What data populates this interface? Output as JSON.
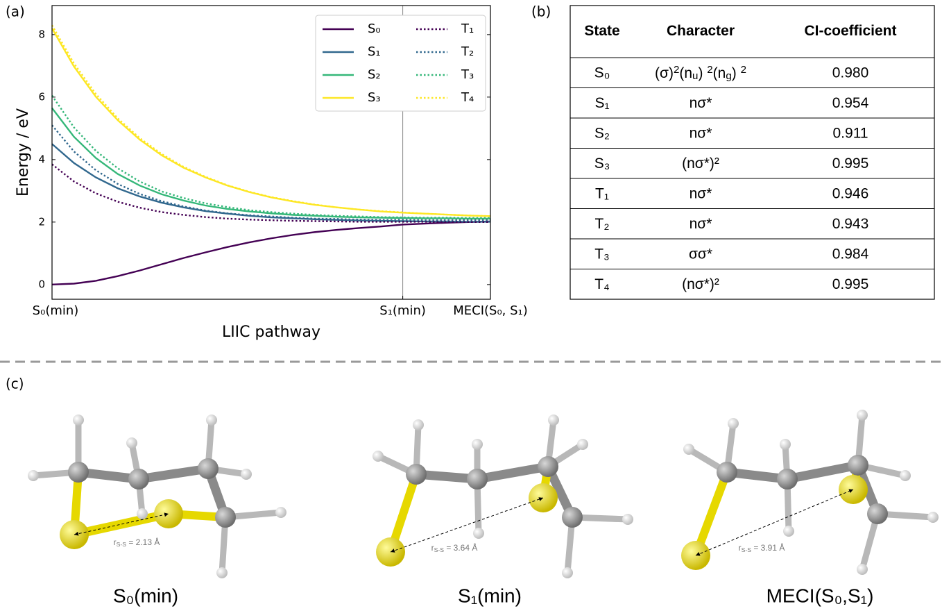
{
  "panels": {
    "a": "(a)",
    "b": "(b)",
    "c": "(c)"
  },
  "chart_data": {
    "type": "line",
    "xlabel": "LIIC pathway",
    "ylabel": "Energy / eV",
    "x": [
      0,
      1,
      2,
      3,
      4,
      5,
      6,
      7,
      8,
      9,
      10,
      11,
      12,
      13,
      14,
      15,
      16,
      17,
      18,
      19,
      20
    ],
    "xlim": [
      0,
      20
    ],
    "xticks": [
      {
        "value": 0,
        "label": "S₀(min)"
      },
      {
        "value": 16,
        "label": "S₁(min)"
      },
      {
        "value": 20,
        "label": "MECI(S₀, S₁)"
      }
    ],
    "vline": 16,
    "ylim": [
      -0.47,
      8.93
    ],
    "yticks": [
      0,
      2,
      4,
      6,
      8
    ],
    "legend": "upper right",
    "legend_columns": 2,
    "series": [
      {
        "name": "S₀",
        "color": "#440154",
        "style": "solid",
        "values": [
          0,
          0.03,
          0.12,
          0.27,
          0.45,
          0.65,
          0.85,
          1.03,
          1.2,
          1.35,
          1.48,
          1.59,
          1.68,
          1.75,
          1.81,
          1.86,
          1.92,
          1.95,
          1.98,
          2.0,
          2.02
        ]
      },
      {
        "name": "S₁",
        "color": "#31688e",
        "style": "solid",
        "values": [
          4.5,
          3.89,
          3.43,
          3.08,
          2.82,
          2.62,
          2.47,
          2.35,
          2.27,
          2.2,
          2.15,
          2.12,
          2.09,
          2.07,
          2.05,
          2.04,
          2.03,
          2.02,
          2.02,
          2.01,
          2.01
        ]
      },
      {
        "name": "S₂",
        "color": "#35b779",
        "style": "solid",
        "values": [
          5.65,
          4.73,
          4.05,
          3.54,
          3.17,
          2.89,
          2.69,
          2.53,
          2.42,
          2.34,
          2.28,
          2.23,
          2.2,
          2.17,
          2.15,
          2.14,
          2.13,
          2.12,
          2.12,
          2.11,
          2.11
        ]
      },
      {
        "name": "S₃",
        "color": "#fde725",
        "style": "solid",
        "values": [
          8.2,
          6.98,
          6.01,
          5.26,
          4.64,
          4.14,
          3.74,
          3.43,
          3.17,
          2.96,
          2.79,
          2.66,
          2.55,
          2.47,
          2.4,
          2.34,
          2.3,
          2.27,
          2.24,
          2.21,
          2.19
        ]
      },
      {
        "name": "T₁",
        "color": "#440154",
        "style": "dotted",
        "values": [
          3.85,
          3.3,
          2.92,
          2.65,
          2.46,
          2.32,
          2.23,
          2.16,
          2.11,
          2.08,
          2.06,
          2.04,
          2.03,
          2.02,
          2.01,
          2.01,
          2.01,
          2.01,
          2.0,
          2.0,
          2.0
        ]
      },
      {
        "name": "T₂",
        "color": "#31688e",
        "style": "dotted",
        "values": [
          5.1,
          4.26,
          3.66,
          3.22,
          2.9,
          2.67,
          2.5,
          2.37,
          2.28,
          2.22,
          2.18,
          2.14,
          2.11,
          2.1,
          2.08,
          2.07,
          2.07,
          2.06,
          2.06,
          2.06,
          2.06
        ]
      },
      {
        "name": "T₃",
        "color": "#35b779",
        "style": "dotted",
        "values": [
          6.05,
          5.03,
          4.28,
          3.72,
          3.3,
          2.98,
          2.77,
          2.6,
          2.48,
          2.38,
          2.32,
          2.27,
          2.23,
          2.2,
          2.18,
          2.16,
          2.15,
          2.14,
          2.14,
          2.13,
          2.13
        ]
      },
      {
        "name": "T₄",
        "color": "#fde725",
        "style": "dotted",
        "values": [
          8.3,
          7.08,
          6.1,
          5.32,
          4.69,
          4.18,
          3.77,
          3.45,
          3.18,
          2.97,
          2.8,
          2.67,
          2.56,
          2.47,
          2.4,
          2.35,
          2.31,
          2.27,
          2.24,
          2.21,
          2.19
        ]
      }
    ]
  },
  "table": {
    "header": [
      "State",
      "Character",
      "CI-coefficient"
    ],
    "rows": [
      [
        "S₀",
        [
          {
            "text": "(σ)"
          },
          {
            "sup": "2"
          },
          {
            "text": "(n"
          },
          {
            "sub": "u"
          },
          {
            "text": ") "
          },
          {
            "sup": "2"
          },
          {
            "text": "(n"
          },
          {
            "sub": "g"
          },
          {
            "text": ") "
          },
          {
            "sup": "2"
          }
        ],
        "0.980"
      ],
      [
        "S₁",
        "nσ*",
        "0.954"
      ],
      [
        "S₂",
        "nσ*",
        "0.911"
      ],
      [
        "S₃",
        "(nσ*)²",
        "0.995"
      ],
      [
        "T₁",
        "nσ*",
        "0.946"
      ],
      [
        "T₂",
        "nσ*",
        "0.943"
      ],
      [
        "T₃",
        "σσ*",
        "0.984"
      ],
      [
        "T₄",
        "(nσ*)²",
        "0.995"
      ]
    ]
  },
  "structures": [
    {
      "distance": [
        {
          "text": "r"
        },
        {
          "sub": "S-S"
        },
        {
          "text": " = 2.13 Å"
        }
      ],
      "caption": "S₀(min)"
    },
    {
      "distance": [
        {
          "text": "r"
        },
        {
          "sub": "S-S"
        },
        {
          "text": " = 3.64 Å"
        }
      ],
      "caption": "S₁(min)"
    },
    {
      "distance": [
        {
          "text": "r"
        },
        {
          "sub": "S-S"
        },
        {
          "text": " = 3.91 Å"
        }
      ],
      "caption": "MECI(S₀,S₁)"
    }
  ]
}
